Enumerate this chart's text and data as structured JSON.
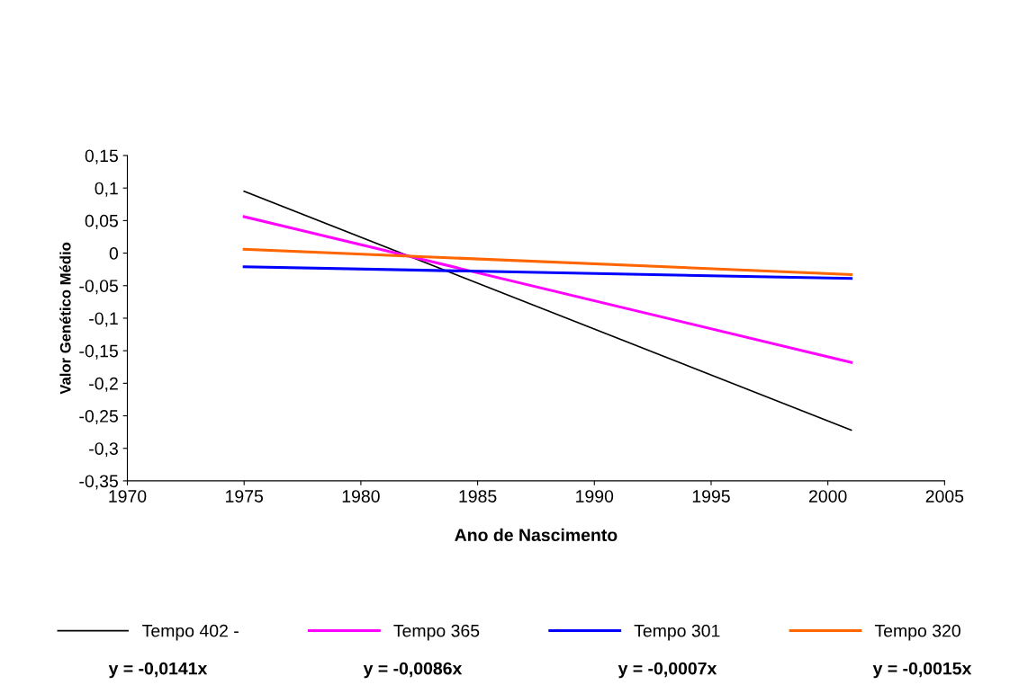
{
  "chart_data": {
    "type": "line",
    "xlabel": "Ano de Nascimento",
    "ylabel": "Valor Genético Médio",
    "x": [
      1975,
      2001
    ],
    "series": [
      {
        "name": "Tempo 402 -",
        "color": "#000000",
        "values": [
          0.095,
          -0.272
        ]
      },
      {
        "name": "Tempo 365",
        "color": "#ff00ff",
        "values": [
          0.056,
          -0.168
        ]
      },
      {
        "name": "Tempo 301",
        "color": "#0000ff",
        "values": [
          -0.021,
          -0.039
        ]
      },
      {
        "name": "Tempo 320",
        "color": "#ff6600",
        "values": [
          0.006,
          -0.033
        ]
      }
    ],
    "xlim": [
      1970,
      2005
    ],
    "xticks": [
      1970,
      1975,
      1980,
      1985,
      1990,
      1995,
      2000,
      2005
    ],
    "ylim": [
      -0.35,
      0.15
    ],
    "yticks": [
      {
        "value": -0.35,
        "label": "-0,35"
      },
      {
        "value": -0.3,
        "label": "-0,3"
      },
      {
        "value": -0.25,
        "label": "-0,25"
      },
      {
        "value": -0.2,
        "label": "-0,2"
      },
      {
        "value": -0.15,
        "label": "-0,15"
      },
      {
        "value": -0.1,
        "label": "-0,1"
      },
      {
        "value": -0.05,
        "label": "-0,05"
      },
      {
        "value": 0,
        "label": "0"
      },
      {
        "value": 0.05,
        "label": "0,05"
      },
      {
        "value": 0.1,
        "label": "0,1"
      },
      {
        "value": 0.15,
        "label": "0,15"
      }
    ],
    "annotations": [
      "y = -0,0141x",
      "y = -0,0086x",
      "y = -0,0007x",
      "y = -0,0015x"
    ],
    "legend": "bottom",
    "grid": false,
    "marker": "none",
    "line_style": "solid"
  }
}
